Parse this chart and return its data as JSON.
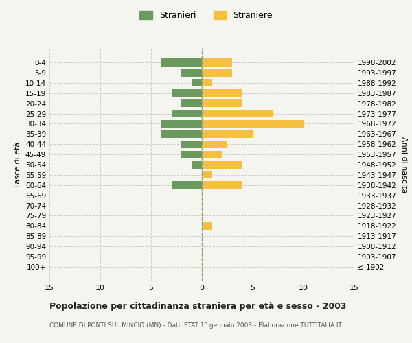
{
  "age_groups": [
    "100+",
    "95-99",
    "90-94",
    "85-89",
    "80-84",
    "75-79",
    "70-74",
    "65-69",
    "60-64",
    "55-59",
    "50-54",
    "45-49",
    "40-44",
    "35-39",
    "30-34",
    "25-29",
    "20-24",
    "15-19",
    "10-14",
    "5-9",
    "0-4"
  ],
  "birth_years": [
    "≤ 1902",
    "1903-1907",
    "1908-1912",
    "1913-1917",
    "1918-1922",
    "1923-1927",
    "1928-1932",
    "1933-1937",
    "1938-1942",
    "1943-1947",
    "1948-1952",
    "1953-1957",
    "1958-1962",
    "1963-1967",
    "1968-1972",
    "1973-1977",
    "1978-1982",
    "1983-1987",
    "1988-1992",
    "1993-1997",
    "1998-2002"
  ],
  "males": [
    0,
    0,
    0,
    0,
    0,
    0,
    0,
    0,
    3,
    0,
    1,
    2,
    2,
    4,
    4,
    3,
    2,
    3,
    1,
    2,
    4
  ],
  "females": [
    0,
    0,
    0,
    0,
    1,
    0,
    0,
    0,
    4,
    1,
    4,
    2,
    2.5,
    5,
    10,
    7,
    4,
    4,
    1,
    3,
    3
  ],
  "male_color": "#6b9a5e",
  "female_color": "#f5c040",
  "background_color": "#f5f5f0",
  "grid_color": "#cccccc",
  "xlim": 15,
  "title": "Popolazione per cittadinanza straniera per età e sesso - 2003",
  "subtitle": "COMUNE DI PONTI SUL MINCIO (MN) - Dati ISTAT 1° gennaio 2003 - Elaborazione TUTTITALIA.IT",
  "ylabel_left": "Fasce di età",
  "ylabel_right": "Anni di nascita",
  "legend_male": "Stranieri",
  "legend_female": "Straniere"
}
